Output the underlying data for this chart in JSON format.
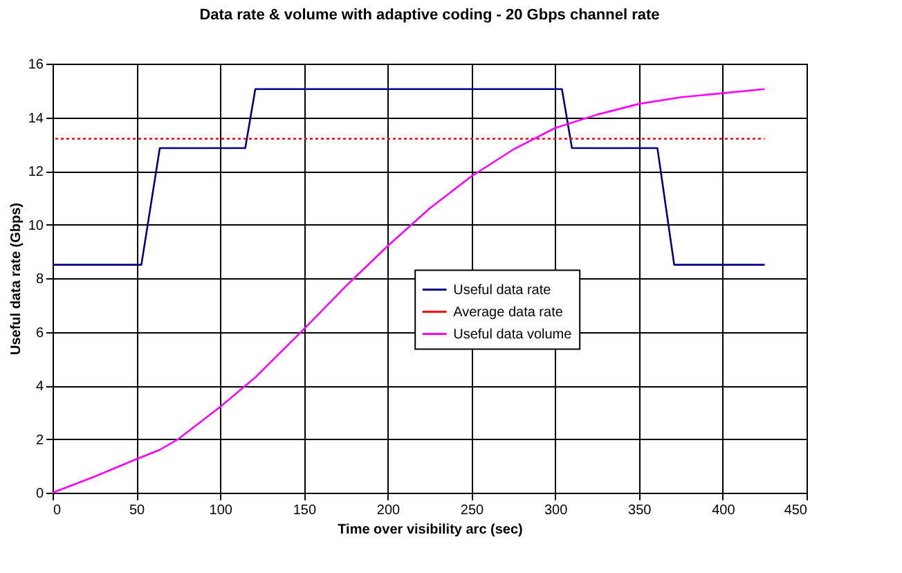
{
  "chart_data": {
    "type": "line",
    "title": "Data rate & volume with adaptive coding - 20 Gbps channel rate",
    "xlabel": "Time over visibility arc (sec)",
    "ylabel": "Useful data rate (Gbps)",
    "xlim": [
      0,
      450
    ],
    "xticks": [
      0,
      50,
      100,
      150,
      200,
      250,
      300,
      350,
      400,
      450
    ],
    "ylim": [
      0,
      16
    ],
    "yticks": [
      0,
      2,
      4,
      6,
      8,
      10,
      12,
      14,
      16
    ],
    "grid": true,
    "legend": "center",
    "marker": "none",
    "series": [
      {
        "name": "Useful data rate",
        "color": "#000080",
        "line_style": "solid",
        "x": [
          0,
          53,
          64,
          115,
          121,
          304,
          310,
          361,
          371,
          425
        ],
        "values": [
          8.5,
          8.5,
          12.85,
          12.85,
          15.05,
          15.05,
          12.85,
          12.85,
          8.5,
          8.5
        ]
      },
      {
        "name": "Average data rate",
        "color": "#ff0000",
        "line_style": "dotted",
        "x": [
          0,
          425
        ],
        "values": [
          13.2,
          13.2
        ]
      },
      {
        "name": "Useful data volume",
        "color": "#ff00ff",
        "line_style": "solid",
        "x": [
          0,
          25,
          50,
          64,
          75,
          100,
          121,
          150,
          175,
          200,
          225,
          250,
          275,
          300,
          325,
          350,
          375,
          400,
          425
        ],
        "values": [
          0,
          0.6,
          1.25,
          1.6,
          2.0,
          3.2,
          4.3,
          6.1,
          7.7,
          9.2,
          10.6,
          11.8,
          12.8,
          13.6,
          14.1,
          14.5,
          14.75,
          14.9,
          15.05
        ]
      }
    ]
  }
}
